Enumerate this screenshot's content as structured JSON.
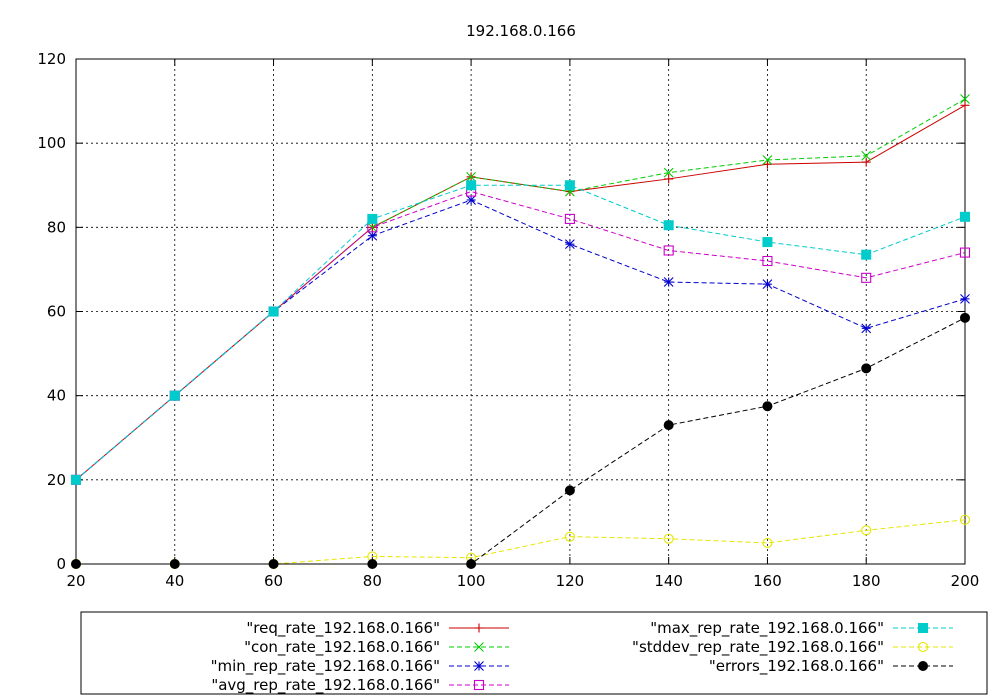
{
  "chart_data": {
    "type": "line",
    "title": "192.168.0.166",
    "xlabel": "",
    "ylabel": "",
    "xlim": [
      20,
      200
    ],
    "ylim": [
      0,
      120
    ],
    "x_ticks": [
      20,
      40,
      60,
      80,
      100,
      120,
      140,
      160,
      180,
      200
    ],
    "y_ticks": [
      0,
      20,
      40,
      60,
      80,
      100,
      120
    ],
    "grid": true,
    "legend_position": "bottom",
    "x": [
      20,
      40,
      60,
      80,
      100,
      120,
      140,
      160,
      180,
      200
    ],
    "series": [
      {
        "name": "\"req_rate_192.168.0.166\"",
        "color": "#cc0000",
        "marker": "plus",
        "dash": "solid",
        "values": [
          20,
          40,
          60,
          80,
          92,
          88.5,
          91.5,
          95,
          95.5,
          109
        ]
      },
      {
        "name": "\"con_rate_192.168.0.166\"",
        "color": "#00cc00",
        "marker": "cross",
        "dash": "dashed",
        "values": [
          20,
          40,
          60,
          80,
          92,
          88.5,
          93,
          96,
          97,
          110.5
        ]
      },
      {
        "name": "\"min_rep_rate_192.168.0.166\"",
        "color": "#0000cc",
        "marker": "star",
        "dash": "dashed",
        "values": [
          20,
          40,
          60,
          78,
          86.5,
          76,
          67,
          66.5,
          56,
          63
        ]
      },
      {
        "name": "\"avg_rep_rate_192.168.0.166\"",
        "color": "#cc00cc",
        "marker": "open-square",
        "dash": "dashed",
        "values": [
          20,
          40,
          60,
          80,
          88.5,
          82,
          74.5,
          72,
          68,
          74
        ]
      },
      {
        "name": "\"max_rep_rate_192.168.0.166\"",
        "color": "#00cccc",
        "marker": "filled-square",
        "dash": "dashed",
        "values": [
          20,
          40,
          60,
          82,
          90,
          90,
          80.5,
          76.5,
          73.5,
          82.5
        ]
      },
      {
        "name": "\"stddev_rep_rate_192.168.0.166\"",
        "color": "#e6e600",
        "marker": "open-circle",
        "dash": "dashed",
        "values": [
          0,
          0,
          0,
          1.8,
          1.5,
          6.5,
          6,
          5,
          8,
          10.5
        ]
      },
      {
        "name": "\"errors_192.168.0.166\"",
        "color": "#000000",
        "marker": "filled-circle",
        "dash": "dashed",
        "values": [
          0,
          0,
          0,
          0,
          0,
          17.5,
          33,
          37.5,
          46.5,
          58.5
        ]
      }
    ]
  }
}
